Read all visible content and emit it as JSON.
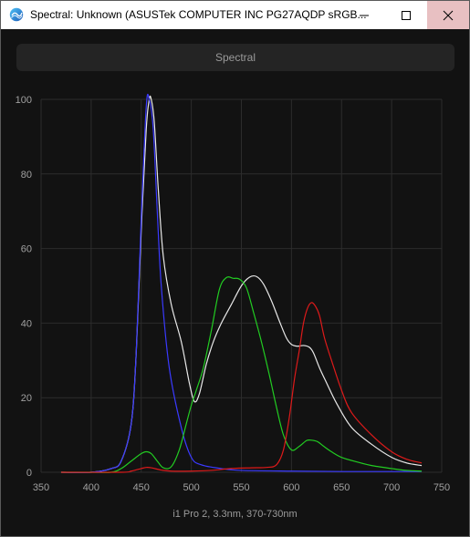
{
  "window": {
    "title": "Spectral: Unknown (ASUSTek COMPUTER INC PG27AQDP sRGB...",
    "controls": {
      "minimize_icon": "minimize-icon",
      "maximize_icon": "maximize-icon",
      "close_icon": "close-icon"
    }
  },
  "tab": {
    "label": "Spectral"
  },
  "footer": {
    "text": "i1 Pro 2, 3.3nm, 370-730nm"
  },
  "colors": {
    "background": "#121212",
    "grid": "#2c2c2c",
    "white": "#e8e8e8",
    "blue": "#3a3aff",
    "green": "#22cc22",
    "red": "#dd1a1a"
  },
  "chart_data": {
    "type": "line",
    "xlim": [
      350,
      750
    ],
    "ylim": [
      0,
      100
    ],
    "x_ticks": [
      350,
      400,
      450,
      500,
      550,
      600,
      650,
      700,
      750
    ],
    "y_ticks": [
      0,
      20,
      40,
      60,
      80,
      100
    ],
    "grid": true,
    "series": [
      {
        "color": "#e8e8e8",
        "x": [
          370,
          400,
          420,
          430,
          440,
          445,
          450,
          455,
          458,
          460,
          463,
          467,
          472,
          480,
          490,
          498,
          503,
          508,
          515,
          522,
          530,
          540,
          550,
          558,
          565,
          572,
          580,
          588,
          595,
          600,
          606,
          612,
          618,
          622,
          628,
          635,
          645,
          660,
          680,
          700,
          715,
          730
        ],
        "y": [
          0,
          0,
          1,
          3,
          13,
          32,
          65,
          92,
          100,
          100,
          94,
          76,
          58,
          45,
          35,
          24,
          19,
          21,
          29,
          35,
          40,
          45,
          50,
          52.3,
          52.5,
          50.5,
          46,
          40.5,
          36,
          34.3,
          33.8,
          34,
          33.5,
          32,
          28,
          24,
          18.5,
          12,
          7.5,
          4,
          2.5,
          1.8
        ]
      },
      {
        "color": "#3a3aff",
        "x": [
          370,
          400,
          420,
          430,
          440,
          445,
          450,
          455,
          458,
          462,
          466,
          470,
          478,
          490,
          500,
          510,
          530,
          550,
          600,
          650,
          700,
          730
        ],
        "y": [
          0,
          0,
          1,
          3,
          13,
          32,
          68,
          98,
          100,
          92,
          70,
          50,
          28,
          12,
          4,
          2,
          1,
          0.5,
          0.3,
          0.2,
          0.2,
          0.2
        ]
      },
      {
        "color": "#22cc22",
        "x": [
          370,
          400,
          420,
          430,
          440,
          450,
          455,
          460,
          466,
          472,
          480,
          488,
          495,
          500,
          505,
          512,
          520,
          528,
          535,
          542,
          548,
          555,
          562,
          570,
          578,
          585,
          592,
          600,
          608,
          615,
          620,
          626,
          632,
          640,
          650,
          665,
          680,
          700,
          715,
          730
        ],
        "y": [
          0,
          0,
          0,
          1,
          3,
          5,
          5.5,
          5,
          3,
          1.2,
          1.5,
          6,
          13,
          18,
          22,
          28,
          38,
          49,
          52.2,
          52,
          51.8,
          49.5,
          43,
          35,
          26,
          17.5,
          10,
          6,
          7,
          8.5,
          8.6,
          8.2,
          7,
          5.5,
          4,
          2.8,
          1.8,
          1,
          0.5,
          0.3
        ]
      },
      {
        "color": "#dd1a1a",
        "x": [
          370,
          430,
          440,
          450,
          455,
          460,
          470,
          480,
          500,
          520,
          540,
          560,
          575,
          585,
          592,
          598,
          603,
          608,
          612,
          616,
          620,
          624,
          628,
          633,
          640,
          650,
          660,
          680,
          700,
          715,
          730
        ],
        "y": [
          0,
          0,
          0.3,
          1,
          1.3,
          1.2,
          0.6,
          0.3,
          0.3,
          0.5,
          1,
          1.2,
          1.3,
          2,
          6,
          15,
          25,
          33,
          40,
          44,
          45.5,
          44.5,
          42,
          36,
          30,
          22,
          16,
          10,
          5.5,
          3.5,
          2.5
        ]
      }
    ]
  }
}
